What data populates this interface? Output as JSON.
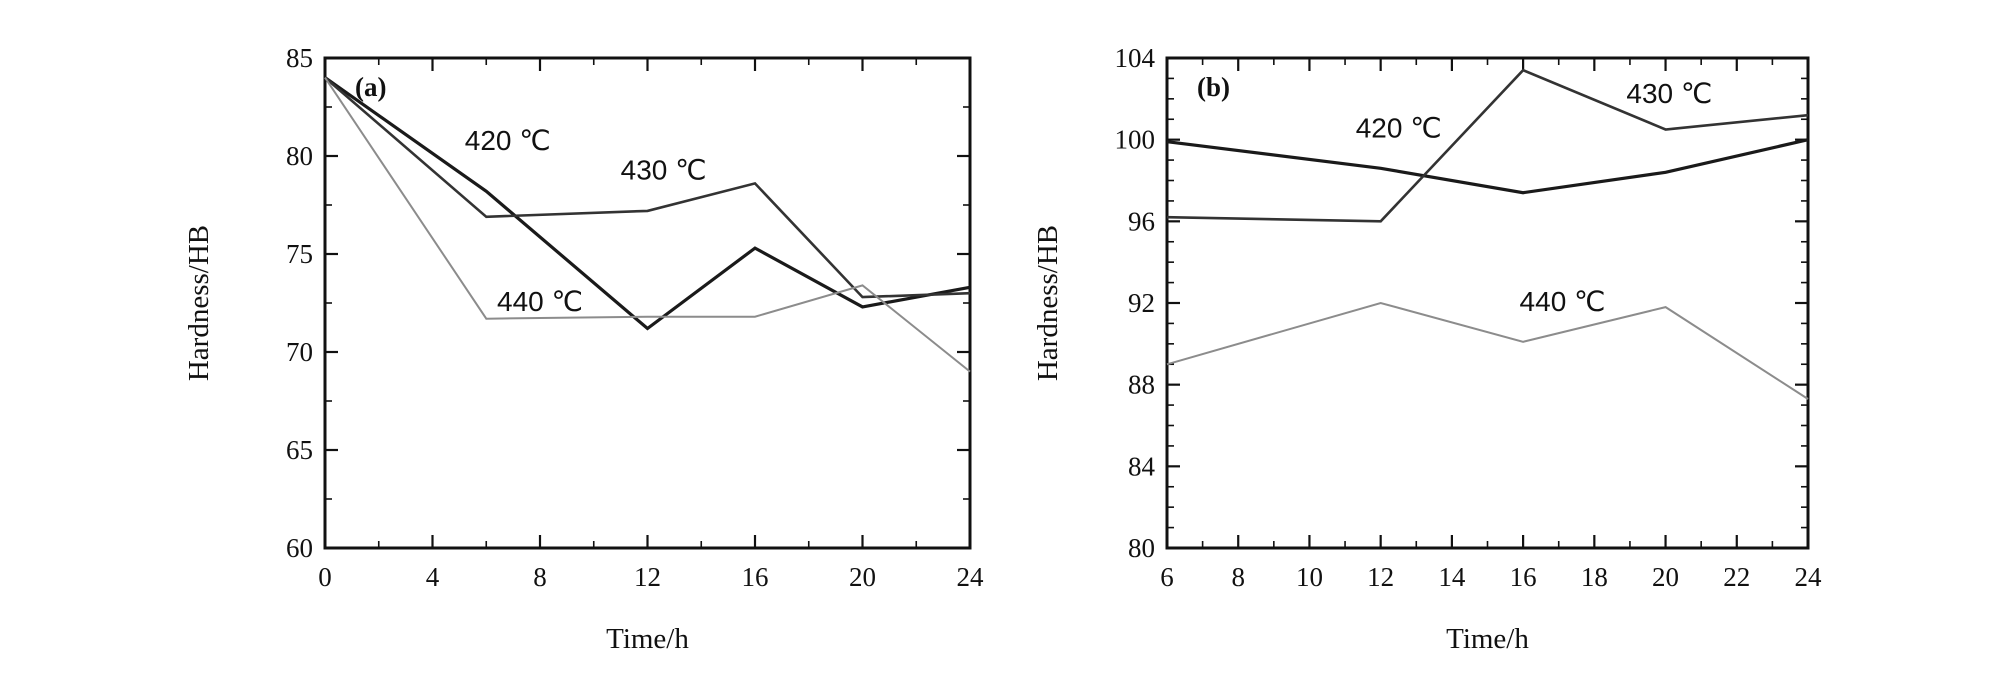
{
  "chart_data": [
    {
      "type": "line",
      "panel_label": "(a)",
      "xlabel": "Time/h",
      "ylabel": "Hardness/HB",
      "xlim": [
        0,
        24
      ],
      "ylim": [
        60,
        85
      ],
      "xticks": [
        0,
        4,
        8,
        12,
        16,
        20,
        24
      ],
      "yticks": [
        60,
        65,
        70,
        75,
        80,
        85
      ],
      "grid": false,
      "series": [
        {
          "name": "420 ℃",
          "color": "#1a1a1a",
          "width": 3.2,
          "points": [
            [
              0,
              84
            ],
            [
              6,
              78.2
            ],
            [
              12,
              71.2
            ],
            [
              16,
              75.3
            ],
            [
              20,
              72.3
            ],
            [
              24,
              73.3
            ]
          ],
          "label_at": [
            5.2,
            80.3
          ]
        },
        {
          "name": "430 ℃",
          "color": "#333333",
          "width": 2.6,
          "points": [
            [
              0,
              84
            ],
            [
              6,
              76.9
            ],
            [
              12,
              77.2
            ],
            [
              16,
              78.6
            ],
            [
              20,
              72.8
            ],
            [
              24,
              73.0
            ]
          ],
          "label_at": [
            11.0,
            78.8
          ]
        },
        {
          "name": "440 ℃",
          "color": "#8c8c8c",
          "width": 2.0,
          "points": [
            [
              0,
              84
            ],
            [
              6,
              71.7
            ],
            [
              12,
              71.8
            ],
            [
              16,
              71.8
            ],
            [
              20,
              73.4
            ],
            [
              24,
              69.0
            ]
          ],
          "label_at": [
            6.4,
            72.1
          ]
        }
      ]
    },
    {
      "type": "line",
      "panel_label": "(b)",
      "xlabel": "Time/h",
      "ylabel": "Hardness/HB",
      "xlim": [
        6,
        24
      ],
      "ylim": [
        80,
        104
      ],
      "xticks": [
        6,
        8,
        10,
        12,
        14,
        16,
        18,
        20,
        22,
        24
      ],
      "yticks": [
        80,
        84,
        88,
        92,
        96,
        100,
        104
      ],
      "grid": false,
      "series": [
        {
          "name": "420 ℃",
          "color": "#1a1a1a",
          "width": 3.2,
          "points": [
            [
              6,
              99.9
            ],
            [
              12,
              98.6
            ],
            [
              16,
              97.4
            ],
            [
              20,
              98.4
            ],
            [
              24,
              100.0
            ]
          ],
          "label_at": [
            11.3,
            100.1
          ]
        },
        {
          "name": "430 ℃",
          "color": "#333333",
          "width": 2.6,
          "points": [
            [
              6,
              96.2
            ],
            [
              12,
              96.0
            ],
            [
              16,
              103.4
            ],
            [
              20,
              100.5
            ],
            [
              24,
              101.2
            ]
          ],
          "label_at": [
            18.9,
            101.8
          ]
        },
        {
          "name": "440 ℃",
          "color": "#8c8c8c",
          "width": 2.0,
          "points": [
            [
              6,
              89.0
            ],
            [
              12,
              92.0
            ],
            [
              16,
              90.1
            ],
            [
              20,
              91.8
            ],
            [
              24,
              87.3
            ]
          ],
          "label_at": [
            15.9,
            91.6
          ]
        }
      ]
    }
  ]
}
